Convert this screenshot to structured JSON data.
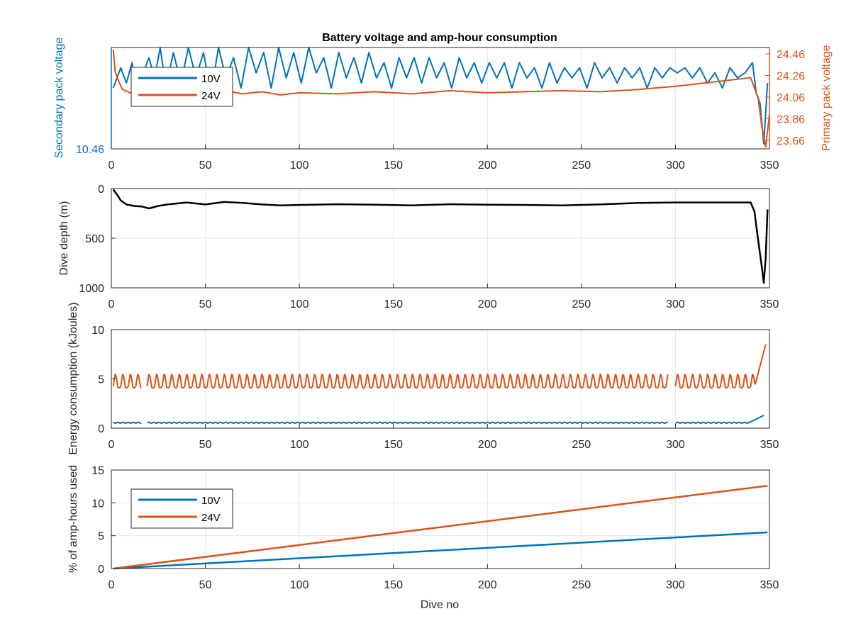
{
  "colors": {
    "blue": "#0072BD",
    "orange": "#D95319",
    "black": "#000000",
    "axis": "#262626",
    "grid": "#E6E6E6"
  },
  "figure": {
    "title": "Battery voltage and amp-hour consumption",
    "xlabel": "Dive no"
  },
  "chart_data": [
    {
      "type": "line",
      "title": "Battery voltage and amp-hour consumption",
      "xlabel": "",
      "ylabel_left": "Secondary pack voltage",
      "ylabel_right": "Primary pack voltage",
      "xlim": [
        0,
        350
      ],
      "xticks": [
        "0",
        "50",
        "100",
        "150",
        "200",
        "250",
        "300",
        "350"
      ],
      "ylim_left": [
        10.46,
        10.66
      ],
      "yticks_left": [
        "10.46"
      ],
      "ylim_right": [
        23.58,
        24.52
      ],
      "yticks_right": [
        "24.46",
        "24.26",
        "24.06",
        "23.86",
        "23.66"
      ],
      "grid": true,
      "legend": {
        "entries": [
          "10V",
          "24V"
        ],
        "location": "top-left"
      },
      "series": [
        {
          "name": "10V",
          "axis": "left",
          "color": "blue",
          "x": [
            1,
            3,
            5,
            8,
            11,
            14,
            17,
            20,
            23,
            26,
            29,
            33,
            37,
            41,
            45,
            49,
            53,
            57,
            61,
            65,
            69,
            73,
            77,
            81,
            85,
            89,
            93,
            97,
            101,
            105,
            109,
            113,
            117,
            121,
            125,
            129,
            133,
            137,
            141,
            145,
            149,
            153,
            157,
            161,
            165,
            169,
            173,
            177,
            181,
            185,
            189,
            193,
            197,
            201,
            205,
            209,
            213,
            217,
            221,
            225,
            229,
            233,
            237,
            241,
            245,
            249,
            253,
            257,
            261,
            265,
            269,
            273,
            277,
            281,
            285,
            289,
            293,
            297,
            301,
            305,
            309,
            313,
            317,
            321,
            325,
            329,
            333,
            337,
            341,
            343,
            345,
            347,
            349
          ],
          "y": [
            10.58,
            10.6,
            10.62,
            10.59,
            10.63,
            10.57,
            10.61,
            10.64,
            10.6,
            10.66,
            10.58,
            10.65,
            10.59,
            10.66,
            10.6,
            10.65,
            10.57,
            10.66,
            10.6,
            10.64,
            10.58,
            10.66,
            10.61,
            10.65,
            10.58,
            10.66,
            10.6,
            10.65,
            10.59,
            10.66,
            10.61,
            10.64,
            10.58,
            10.65,
            10.6,
            10.64,
            10.59,
            10.65,
            10.6,
            10.63,
            10.58,
            10.64,
            10.6,
            10.64,
            10.59,
            10.64,
            10.6,
            10.63,
            10.58,
            10.64,
            10.6,
            10.63,
            10.59,
            10.63,
            10.6,
            10.63,
            10.58,
            10.63,
            10.6,
            10.62,
            10.58,
            10.63,
            10.59,
            10.62,
            10.6,
            10.62,
            10.58,
            10.63,
            10.6,
            10.62,
            10.59,
            10.62,
            10.6,
            10.62,
            10.58,
            10.62,
            10.6,
            10.62,
            10.61,
            10.62,
            10.6,
            10.62,
            10.59,
            10.61,
            10.58,
            10.62,
            10.6,
            10.61,
            10.63,
            10.57,
            10.55,
            10.47,
            10.59
          ]
        },
        {
          "name": "24V",
          "axis": "right",
          "color": "orange",
          "x": [
            1,
            2,
            4,
            6,
            10,
            15,
            20,
            30,
            40,
            50,
            60,
            70,
            80,
            90,
            100,
            120,
            140,
            160,
            180,
            200,
            220,
            240,
            260,
            280,
            300,
            310,
            320,
            330,
            340,
            344,
            346,
            348,
            350
          ],
          "y": [
            24.5,
            24.3,
            24.2,
            24.13,
            24.1,
            24.12,
            24.09,
            24.05,
            24.08,
            24.1,
            24.12,
            24.09,
            24.11,
            24.08,
            24.1,
            24.09,
            24.11,
            24.09,
            24.12,
            24.1,
            24.11,
            24.12,
            24.11,
            24.13,
            24.16,
            24.18,
            24.2,
            24.22,
            24.24,
            24.05,
            23.78,
            23.6,
            23.9
          ]
        }
      ]
    },
    {
      "type": "line",
      "xlabel": "",
      "ylabel": "Dive depth (m)",
      "xlim": [
        0,
        350
      ],
      "xticks": [
        "0",
        "50",
        "100",
        "150",
        "200",
        "250",
        "300",
        "350"
      ],
      "ylim": [
        0,
        1000
      ],
      "y_reversed": true,
      "yticks": [
        "0",
        "500",
        "1000"
      ],
      "grid": true,
      "series": [
        {
          "color": "black",
          "x": [
            1,
            3,
            5,
            8,
            12,
            16,
            20,
            25,
            30,
            35,
            40,
            50,
            60,
            70,
            80,
            90,
            100,
            120,
            140,
            160,
            180,
            200,
            220,
            240,
            260,
            280,
            300,
            320,
            340,
            342,
            344,
            346,
            347,
            348,
            349
          ],
          "y": [
            10,
            60,
            120,
            160,
            175,
            180,
            200,
            175,
            160,
            150,
            140,
            160,
            135,
            145,
            160,
            170,
            165,
            158,
            162,
            170,
            158,
            162,
            165,
            170,
            160,
            145,
            140,
            140,
            140,
            230,
            520,
            800,
            950,
            700,
            210
          ]
        }
      ]
    },
    {
      "type": "line",
      "xlabel": "",
      "ylabel": "Energy consumption (kJoules)",
      "xlim": [
        0,
        350
      ],
      "xticks": [
        "0",
        "50",
        "100",
        "150",
        "200",
        "250",
        "300",
        "350"
      ],
      "ylim": [
        0,
        10
      ],
      "yticks": [
        "0",
        "5",
        "10"
      ],
      "grid": true,
      "series": [
        {
          "name": "24V",
          "color": "orange",
          "x_start": 1,
          "x_end": 348,
          "baseline": 4.1,
          "peak": 5.7,
          "period": 4,
          "gaps": [
            [
              16,
              19
            ],
            [
              296,
              300
            ]
          ],
          "end_value": 8.5
        },
        {
          "name": "10V",
          "color": "blue",
          "x_start": 1,
          "x_end": 347,
          "level": 0.55,
          "gaps": [
            [
              16,
              19
            ],
            [
              296,
              300
            ]
          ],
          "end_value": 1.3
        }
      ]
    },
    {
      "type": "line",
      "xlabel": "Dive no",
      "ylabel": "% of amp-hours used",
      "xlim": [
        0,
        350
      ],
      "xticks": [
        "0",
        "50",
        "100",
        "150",
        "200",
        "250",
        "300",
        "350"
      ],
      "ylim": [
        0,
        15
      ],
      "yticks": [
        "0",
        "5",
        "10",
        "15"
      ],
      "grid": true,
      "legend": {
        "entries": [
          "10V",
          "24V"
        ],
        "location": "bottom-left"
      },
      "series": [
        {
          "name": "10V",
          "color": "blue",
          "x": [
            1,
            349
          ],
          "y": [
            0,
            5.5
          ]
        },
        {
          "name": "24V",
          "color": "orange",
          "x": [
            1,
            349
          ],
          "y": [
            0,
            12.6
          ]
        }
      ]
    }
  ]
}
